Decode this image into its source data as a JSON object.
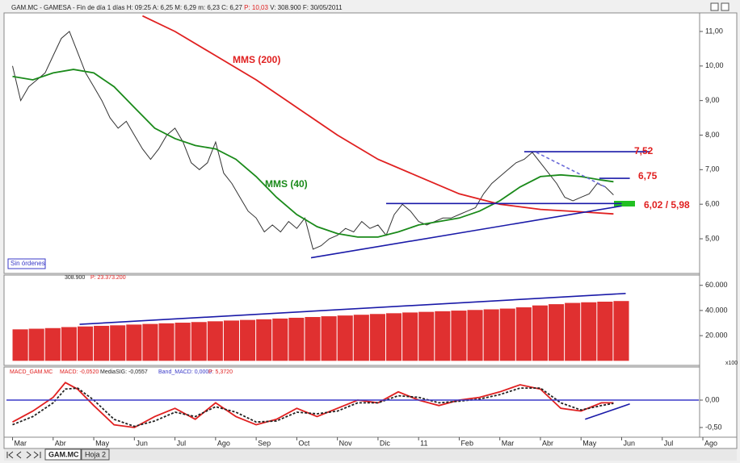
{
  "header": {
    "info": "GAM.MC - GAMESA - Fin de día 1 días H: 09:25 A: 6,25 M: 6,29 m: 6,23 C: 6,27",
    "p": "P: 10,03",
    "rest": "V: 308.900  F: 30/05/2011"
  },
  "status": "Sin órdenes",
  "tabs": [
    "GAM.MC",
    "Hoja 2"
  ],
  "chart_data": [
    {
      "type": "line",
      "xlim": [
        -0.15,
        16.9
      ],
      "xticks": [
        {
          "value": 0,
          "label": "Mar"
        },
        {
          "value": 1,
          "label": "Abr"
        },
        {
          "value": 2,
          "label": "May"
        },
        {
          "value": 3,
          "label": "Jun"
        },
        {
          "value": 4,
          "label": "Jul"
        },
        {
          "value": 5,
          "label": "Ago"
        },
        {
          "value": 6,
          "label": "Sep"
        },
        {
          "value": 7,
          "label": "Oct"
        },
        {
          "value": 8,
          "label": "Nov"
        },
        {
          "value": 9,
          "label": "Dic"
        },
        {
          "value": 10,
          "label": "11"
        },
        {
          "value": 11,
          "label": "Feb"
        },
        {
          "value": 12,
          "label": "Mar"
        },
        {
          "value": 13,
          "label": "Abr"
        },
        {
          "value": 14,
          "label": "May"
        },
        {
          "value": 15,
          "label": "Jun"
        },
        {
          "value": 16,
          "label": "Jul"
        },
        {
          "value": 17,
          "label": "Ago"
        }
      ],
      "ylim": [
        4.02,
        11.49
      ],
      "yticks": [
        {
          "value": 11,
          "label": "11,00"
        },
        {
          "value": 10,
          "label": "10,00"
        },
        {
          "value": 9,
          "label": "9,00"
        },
        {
          "value": 8,
          "label": "8,00"
        },
        {
          "value": 7,
          "label": "7,00"
        },
        {
          "value": 6,
          "label": "6,00"
        },
        {
          "value": 5,
          "label": "5,00"
        }
      ],
      "series": [
        {
          "color": "#333333",
          "x": [
            0,
            0.2,
            0.4,
            0.6,
            0.8,
            1,
            1.2,
            1.4,
            1.6,
            1.8,
            2,
            2.2,
            2.4,
            2.6,
            2.8,
            3,
            3.2,
            3.4,
            3.6,
            3.8,
            4,
            4.2,
            4.4,
            4.6,
            4.8,
            5,
            5.2,
            5.4,
            5.6,
            5.8,
            6,
            6.2,
            6.4,
            6.6,
            6.8,
            7,
            7.2,
            7.4,
            7.6,
            7.8,
            8,
            8.2,
            8.4,
            8.6,
            8.8,
            9,
            9.2,
            9.4,
            9.6,
            9.8,
            10,
            10.2,
            10.4,
            10.6,
            10.8,
            11,
            11.2,
            11.4,
            11.6,
            11.8,
            12,
            12.2,
            12.4,
            12.6,
            12.8,
            13,
            13.2,
            13.4,
            13.6,
            13.8,
            14,
            14.2,
            14.4,
            14.6,
            14.8
          ],
          "values": [
            10.0,
            9.0,
            9.4,
            9.6,
            9.8,
            10.3,
            10.8,
            11.0,
            10.4,
            9.8,
            9.4,
            9.0,
            8.5,
            8.2,
            8.4,
            8.0,
            7.6,
            7.3,
            7.6,
            8.0,
            8.2,
            7.8,
            7.2,
            7.0,
            7.2,
            7.8,
            6.9,
            6.6,
            6.2,
            5.8,
            5.6,
            5.2,
            5.4,
            5.2,
            5.5,
            5.3,
            5.6,
            4.7,
            4.8,
            5.0,
            5.1,
            5.3,
            5.2,
            5.5,
            5.3,
            5.4,
            5.1,
            5.7,
            6.0,
            5.8,
            5.5,
            5.4,
            5.5,
            5.6,
            5.6,
            5.7,
            5.8,
            5.9,
            6.3,
            6.6,
            6.8,
            7.0,
            7.2,
            7.3,
            7.5,
            7.2,
            6.9,
            6.6,
            6.2,
            6.1,
            6.2,
            6.3,
            6.6,
            6.5,
            6.27
          ]
        },
        {
          "name": "MMS (40)",
          "color": "#1a8a1a",
          "x": [
            0,
            0.5,
            1,
            1.5,
            2,
            2.5,
            3,
            3.5,
            4,
            4.5,
            5,
            5.5,
            6,
            6.5,
            7,
            7.5,
            8,
            8.5,
            9,
            9.5,
            10,
            10.5,
            11,
            11.5,
            12,
            12.5,
            13,
            13.5,
            14,
            14.5,
            14.8
          ],
          "values": [
            9.7,
            9.6,
            9.8,
            9.9,
            9.8,
            9.4,
            8.8,
            8.2,
            7.9,
            7.7,
            7.6,
            7.3,
            6.8,
            6.2,
            5.7,
            5.35,
            5.15,
            5.05,
            5.05,
            5.2,
            5.4,
            5.5,
            5.6,
            5.8,
            6.1,
            6.5,
            6.8,
            6.85,
            6.8,
            6.7,
            6.65
          ]
        },
        {
          "name": "MMS (200)",
          "color": "#e02020",
          "x": [
            3.2,
            4,
            5,
            6,
            7,
            8,
            9,
            10,
            11,
            12,
            13,
            14,
            14.8
          ],
          "values": [
            11.45,
            11.0,
            10.3,
            9.6,
            8.8,
            8.0,
            7.3,
            6.8,
            6.3,
            6.0,
            5.85,
            5.78,
            5.72
          ]
        }
      ],
      "lines": [
        {
          "color": "#1a1aa8",
          "x": [
            7.35,
            15.0
          ],
          "values": [
            4.45,
            5.95
          ]
        },
        {
          "color": "#1a1aa8",
          "x": [
            12.6,
            15.7
          ],
          "values": [
            7.52,
            7.52
          ]
        },
        {
          "color": "#1a1aa8",
          "x": [
            14.45,
            15.2
          ],
          "values": [
            6.75,
            6.75
          ]
        },
        {
          "color": "#1a1aa8",
          "x": [
            9.2,
            15.0
          ],
          "values": [
            6.02,
            6.02
          ]
        },
        {
          "color": "#6a6ad8",
          "x": [
            12.9,
            14.6
          ],
          "values": [
            7.5,
            6.5
          ],
          "dashed": true
        }
      ],
      "annotations": [
        "7,52",
        "6,75",
        "6,02 / 5,98"
      ]
    },
    {
      "type": "bar",
      "texts": [
        "308.900",
        "P: 23.373.200",
        "x100"
      ],
      "color": "#e03030",
      "ylim": [
        -3000,
        67500
      ],
      "yticks": [
        {
          "value": 60000,
          "label": "60.000"
        },
        {
          "value": 40000,
          "label": "40.000"
        },
        {
          "value": 20000,
          "label": "20.000"
        }
      ],
      "x": [
        0,
        0.4,
        0.8,
        1.2,
        1.6,
        2,
        2.4,
        2.8,
        3.2,
        3.6,
        4,
        4.4,
        4.8,
        5.2,
        5.6,
        6,
        6.4,
        6.8,
        7.2,
        7.6,
        8,
        8.4,
        8.8,
        9.2,
        9.6,
        10,
        10.4,
        10.8,
        11.2,
        11.6,
        12,
        12.4,
        12.8,
        13.2,
        13.6,
        14,
        14.4,
        14.8
      ],
      "values": [
        25000,
        25500,
        26000,
        26800,
        27300,
        27800,
        28200,
        28800,
        29300,
        29800,
        30300,
        30800,
        31400,
        32000,
        32500,
        33000,
        33600,
        34200,
        34800,
        35400,
        36000,
        36600,
        37200,
        37800,
        38400,
        38900,
        39400,
        39900,
        40400,
        40900,
        41500,
        42500,
        44000,
        45000,
        46000,
        46500,
        47000,
        47500
      ],
      "lines": [
        {
          "color": "#1a1aa8",
          "x": [
            1.65,
            15.1
          ],
          "values": [
            29000,
            53500
          ]
        }
      ]
    },
    {
      "type": "line",
      "texts": [
        "MACD_GAM.MC",
        "MACD: -0,0520",
        "MediaSIG: -0,0557",
        "Band_MACD: 0,0000",
        "P: 5,3720"
      ],
      "ylim": [
        -0.647,
        0.574
      ],
      "yticks": [
        {
          "value": 0,
          "label": "0,00"
        },
        {
          "value": -0.5,
          "label": "-0,50"
        }
      ],
      "series": [
        {
          "color": "#e02020",
          "x": [
            0,
            0.5,
            1,
            1.3,
            1.6,
            2,
            2.5,
            3,
            3.5,
            4,
            4.5,
            5,
            5.5,
            6,
            6.5,
            7,
            7.5,
            8,
            8.5,
            9,
            9.5,
            10,
            10.5,
            11,
            11.5,
            12,
            12.5,
            13,
            13.5,
            14,
            14.5,
            14.8
          ],
          "values": [
            -0.4,
            -0.2,
            0.05,
            0.32,
            0.2,
            -0.1,
            -0.45,
            -0.5,
            -0.3,
            -0.15,
            -0.35,
            -0.05,
            -0.3,
            -0.45,
            -0.35,
            -0.15,
            -0.3,
            -0.15,
            0.0,
            -0.05,
            0.15,
            0.0,
            -0.1,
            0.0,
            0.05,
            0.15,
            0.28,
            0.2,
            -0.15,
            -0.2,
            -0.05,
            -0.05
          ]
        },
        {
          "color": "#222222",
          "dashed": true,
          "x": [
            0,
            0.5,
            1,
            1.3,
            1.6,
            2,
            2.5,
            3,
            3.5,
            4,
            4.5,
            5,
            5.5,
            6,
            6.5,
            7,
            7.5,
            8,
            8.5,
            9,
            9.5,
            10,
            10.5,
            11,
            11.5,
            12,
            12.5,
            13,
            13.5,
            14,
            14.5,
            14.8
          ],
          "values": [
            -0.45,
            -0.3,
            -0.05,
            0.2,
            0.22,
            0.0,
            -0.35,
            -0.48,
            -0.38,
            -0.22,
            -0.3,
            -0.12,
            -0.22,
            -0.4,
            -0.38,
            -0.22,
            -0.25,
            -0.2,
            -0.05,
            -0.05,
            0.08,
            0.05,
            -0.05,
            -0.02,
            0.02,
            0.1,
            0.22,
            0.22,
            -0.05,
            -0.18,
            -0.1,
            -0.06
          ]
        }
      ],
      "lines": [
        {
          "color": "#3a3ac8",
          "x": [
            -0.15,
            16.9
          ],
          "values": [
            0,
            0
          ]
        },
        {
          "color": "#1a1aa8",
          "x": [
            14.1,
            15.2
          ],
          "values": [
            -0.35,
            -0.07
          ]
        }
      ]
    }
  ]
}
